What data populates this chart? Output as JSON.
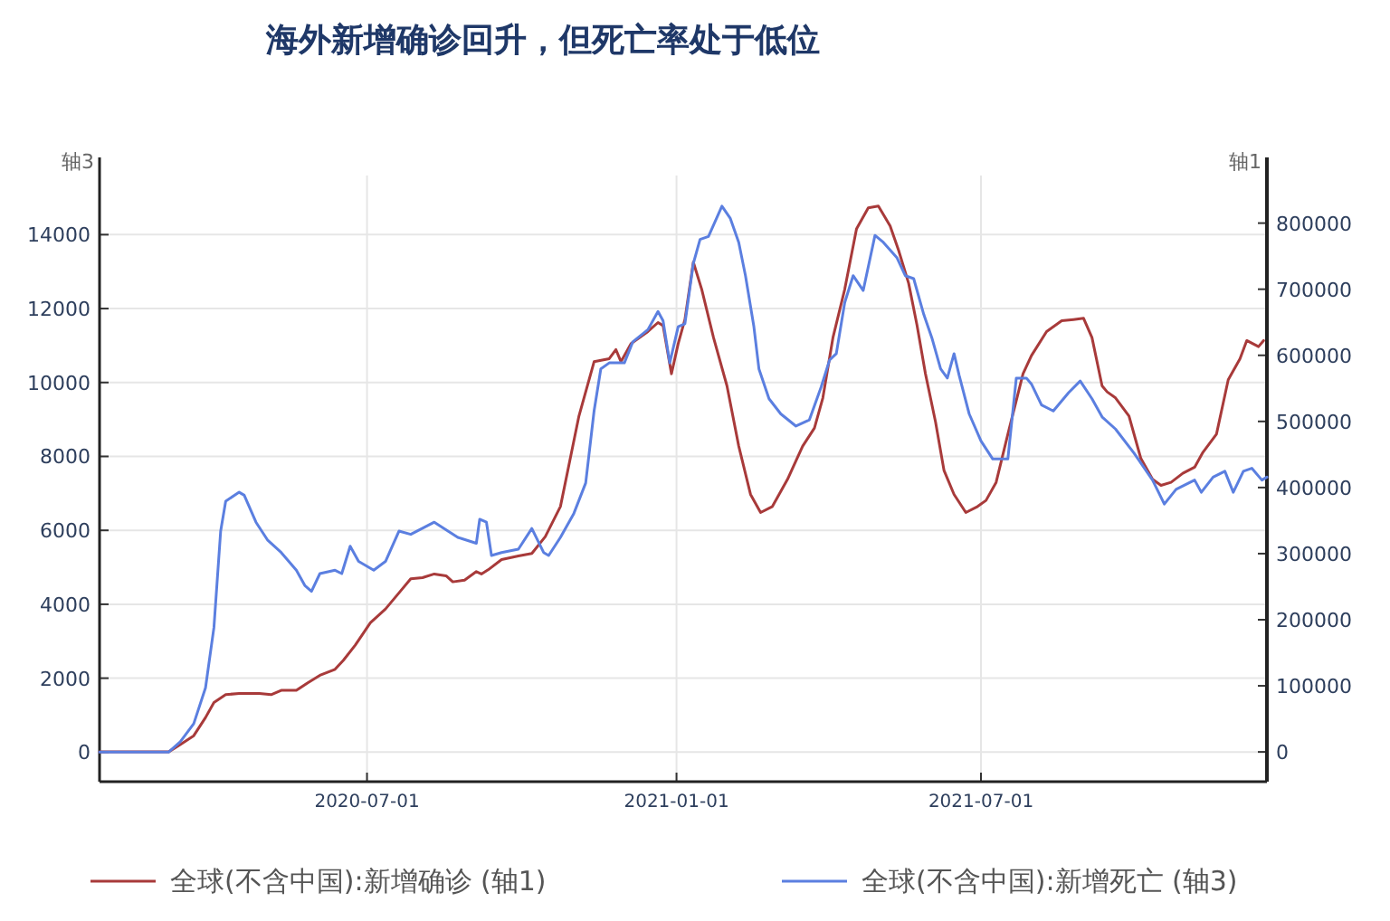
{
  "chart_data": {
    "type": "line",
    "title": "海外新增确诊回升，但死亡率处于低位",
    "ylabel": "轴3",
    "y2label": "轴1",
    "xlim": [
      "2020-01-24",
      "2021-12-18"
    ],
    "xticks": [
      "2020-07-01",
      "2021-01-01",
      "2021-07-01"
    ],
    "ylim": [
      -800,
      15600
    ],
    "yticks": [
      0,
      2000,
      4000,
      6000,
      8000,
      10000,
      12000,
      14000
    ],
    "y2lim": [
      -45000,
      872000
    ],
    "y2ticks": [
      0,
      100000,
      200000,
      300000,
      400000,
      500000,
      600000,
      700000,
      800000
    ],
    "grid": true,
    "legend": "bottom",
    "marker": "none",
    "line_style": "solid",
    "series": [
      {
        "name": "全球(不含中国):新增确诊 (轴1)",
        "color": "#a83a3a",
        "axis": "y2",
        "x": [
          "2020-01-24",
          "2020-03-05",
          "2020-03-12",
          "2020-03-20",
          "2020-03-27",
          "2020-04-01",
          "2020-04-08",
          "2020-04-16",
          "2020-04-28",
          "2020-05-05",
          "2020-05-11",
          "2020-05-20",
          "2020-05-27",
          "2020-06-03",
          "2020-06-12",
          "2020-06-17",
          "2020-06-24",
          "2020-07-03",
          "2020-07-12",
          "2020-07-21",
          "2020-07-27",
          "2020-08-03",
          "2020-08-10",
          "2020-08-17",
          "2020-08-21",
          "2020-08-28",
          "2020-09-04",
          "2020-09-07",
          "2020-09-11",
          "2020-09-19",
          "2020-09-29",
          "2020-10-07",
          "2020-10-15",
          "2020-10-24",
          "2020-11-04",
          "2020-11-13",
          "2020-11-22",
          "2020-11-26",
          "2020-11-29",
          "2020-12-05",
          "2020-12-15",
          "2020-12-21",
          "2020-12-24",
          "2020-12-29",
          "2021-01-02",
          "2021-01-06",
          "2021-01-11",
          "2021-01-16",
          "2021-01-23",
          "2021-01-31",
          "2021-02-07",
          "2021-02-14",
          "2021-02-20",
          "2021-02-27",
          "2021-03-08",
          "2021-03-17",
          "2021-03-24",
          "2021-03-29",
          "2021-04-04",
          "2021-04-11",
          "2021-04-18",
          "2021-04-25",
          "2021-05-01",
          "2021-05-08",
          "2021-05-13",
          "2021-05-19",
          "2021-05-24",
          "2021-05-29",
          "2021-06-04",
          "2021-06-09",
          "2021-06-15",
          "2021-06-22",
          "2021-06-29",
          "2021-07-04",
          "2021-07-10",
          "2021-07-17",
          "2021-07-26",
          "2021-07-31",
          "2021-08-09",
          "2021-08-18",
          "2021-08-25",
          "2021-08-31",
          "2021-09-05",
          "2021-09-11",
          "2021-09-14",
          "2021-09-19",
          "2021-09-27",
          "2021-10-04",
          "2021-10-11",
          "2021-10-16",
          "2021-10-22",
          "2021-10-29",
          "2021-11-05",
          "2021-11-10",
          "2021-11-18",
          "2021-11-25",
          "2021-12-02",
          "2021-12-06",
          "2021-12-13",
          "2021-12-16"
        ],
        "values": [
          0,
          0,
          11000,
          24600,
          52000,
          74800,
          86700,
          88500,
          88500,
          86700,
          93100,
          93100,
          104900,
          115900,
          125000,
          138700,
          161500,
          195300,
          216200,
          243600,
          261900,
          263700,
          269200,
          266400,
          257300,
          260000,
          272800,
          269200,
          275500,
          291100,
          296500,
          300200,
          325700,
          371300,
          508200,
          590300,
          594900,
          608600,
          590300,
          617700,
          636000,
          649600,
          645000,
          572100,
          617700,
          654200,
          740900,
          699800,
          626800,
          553800,
          462600,
          389600,
          362200,
          371300,
          412400,
          462600,
          490000,
          535600,
          626800,
          699800,
          791100,
          823000,
          825700,
          795600,
          759100,
          708900,
          645100,
          572100,
          499100,
          426100,
          389600,
          362200,
          371300,
          380500,
          407800,
          480800,
          572100,
          599500,
          636000,
          652400,
          654200,
          656000,
          626800,
          553800,
          544700,
          535600,
          508200,
          444300,
          412400,
          403300,
          407800,
          421500,
          430700,
          453500,
          480800,
          563000,
          594900,
          622300,
          613100,
          622300
        ]
      },
      {
        "name": "全球(不含中国):新增死亡 (轴3)",
        "color": "#5b7fe0",
        "x": [
          "2020-01-24",
          "2020-03-05",
          "2020-03-12",
          "2020-03-20",
          "2020-03-27",
          "2020-04-01",
          "2020-04-05",
          "2020-04-08",
          "2020-04-16",
          "2020-04-19",
          "2020-04-26",
          "2020-05-03",
          "2020-05-11",
          "2020-05-20",
          "2020-05-25",
          "2020-05-29",
          "2020-06-03",
          "2020-06-12",
          "2020-06-16",
          "2020-06-21",
          "2020-06-26",
          "2020-07-05",
          "2020-07-12",
          "2020-07-20",
          "2020-07-27",
          "2020-08-10",
          "2020-08-24",
          "2020-09-04",
          "2020-09-06",
          "2020-09-10",
          "2020-09-13",
          "2020-09-19",
          "2020-09-29",
          "2020-10-07",
          "2020-10-14",
          "2020-10-17",
          "2020-10-24",
          "2020-11-01",
          "2020-11-08",
          "2020-11-13",
          "2020-11-17",
          "2020-11-22",
          "2020-12-01",
          "2020-12-06",
          "2020-12-15",
          "2020-12-21",
          "2020-12-24",
          "2020-12-28",
          "2021-01-02",
          "2021-01-06",
          "2021-01-11",
          "2021-01-15",
          "2021-01-20",
          "2021-01-28",
          "2021-02-02",
          "2021-02-07",
          "2021-02-11",
          "2021-02-16",
          "2021-02-19",
          "2021-02-25",
          "2021-03-04",
          "2021-03-13",
          "2021-03-21",
          "2021-03-28",
          "2021-04-02",
          "2021-04-06",
          "2021-04-11",
          "2021-04-16",
          "2021-04-22",
          "2021-04-29",
          "2021-05-04",
          "2021-05-12",
          "2021-05-17",
          "2021-05-22",
          "2021-05-28",
          "2021-06-02",
          "2021-06-07",
          "2021-06-11",
          "2021-06-15",
          "2021-06-18",
          "2021-06-24",
          "2021-07-01",
          "2021-07-08",
          "2021-07-17",
          "2021-07-22",
          "2021-07-28",
          "2021-07-31",
          "2021-08-06",
          "2021-08-13",
          "2021-08-22",
          "2021-08-29",
          "2021-09-05",
          "2021-09-11",
          "2021-09-19",
          "2021-09-30",
          "2021-10-11",
          "2021-10-18",
          "2021-10-25",
          "2021-11-05",
          "2021-11-09",
          "2021-11-16",
          "2021-11-23",
          "2021-11-28",
          "2021-12-04",
          "2021-12-09",
          "2021-12-15",
          "2021-12-18"
        ],
        "values": [
          0,
          0,
          280,
          770,
          1740,
          3370,
          5980,
          6790,
          7030,
          6950,
          6220,
          5730,
          5400,
          4920,
          4510,
          4350,
          4830,
          4920,
          4830,
          5570,
          5160,
          4920,
          5160,
          5980,
          5890,
          6220,
          5810,
          5650,
          6300,
          6220,
          5320,
          5400,
          5490,
          6050,
          5400,
          5320,
          5810,
          6460,
          7280,
          9230,
          10370,
          10530,
          10530,
          11100,
          11430,
          11920,
          11670,
          10530,
          11510,
          11590,
          13220,
          13870,
          13950,
          14770,
          14440,
          13790,
          12890,
          11510,
          10370,
          9560,
          9150,
          8820,
          8990,
          9880,
          10610,
          10780,
          12160,
          12890,
          12490,
          13980,
          13790,
          13380,
          12890,
          12810,
          11840,
          11180,
          10370,
          10120,
          10780,
          10200,
          9150,
          8420,
          7930,
          7930,
          10120,
          10120,
          9960,
          9390,
          9230,
          9720,
          10040,
          9560,
          9070,
          8740,
          8090,
          7360,
          6710,
          7110,
          7360,
          7030,
          7440,
          7600,
          7030,
          7600,
          7680,
          7360,
          7440
        ]
      }
    ]
  }
}
